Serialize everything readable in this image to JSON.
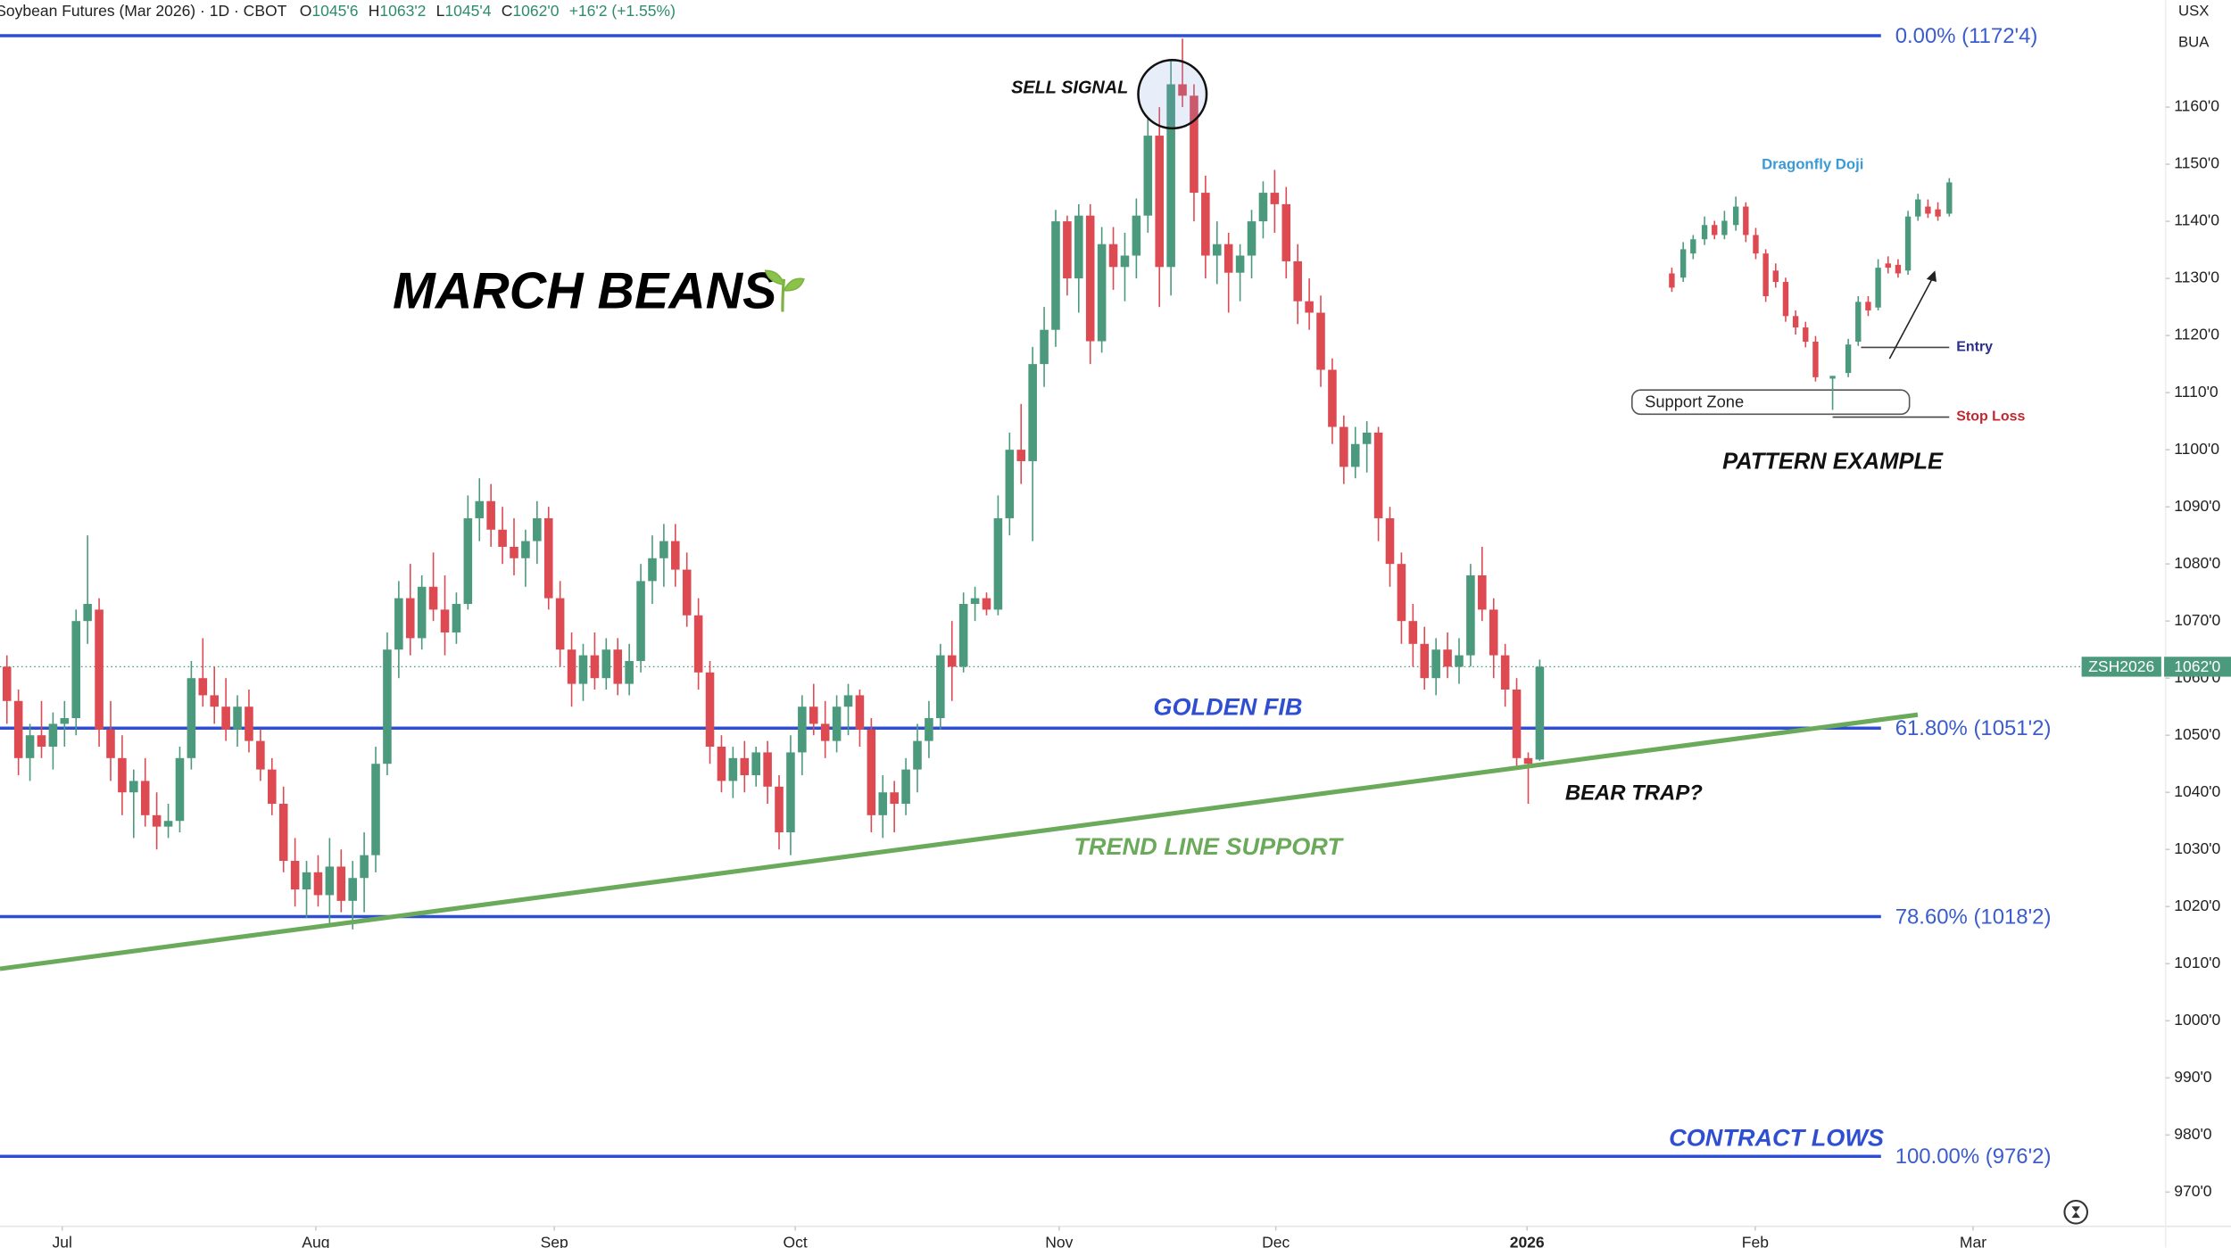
{
  "chart_data": {
    "type": "candlestick",
    "header": {
      "symbol": "Soybean Futures (Mar 2026) · 1D · CBOT",
      "ohlc": [
        {
          "label": "O",
          "value": "1045'6"
        },
        {
          "label": "H",
          "value": "1063'2"
        },
        {
          "label": "L",
          "value": "1045'4"
        },
        {
          "label": "C",
          "value": "1062'0"
        }
      ],
      "change": "+16'2 (+1.55%)"
    },
    "units": [
      "USX",
      "BUA"
    ],
    "title": "MARCH BEANS",
    "annotations": [
      "SELL SIGNAL",
      "GOLDEN FIB",
      "TREND LINE SUPPORT",
      "BEAR TRAP?",
      "CONTRACT LOWS"
    ],
    "inset": {
      "title": "PATTERN EXAMPLE",
      "pattern": "Dragonfly  Doji",
      "entry": "Entry",
      "stop": "Stop Loss",
      "zone": "Support  Zone"
    },
    "up_color": "#4c9a7d",
    "down_color": "#dd4a52",
    "xlim": [
      -0.6,
      187.3
    ],
    "ylim": [
      964.0,
      1178.7
    ],
    "grid": false,
    "xticks": [
      {
        "value": 4.8,
        "label": "Jul"
      },
      {
        "value": 26.8,
        "label": "Aug"
      },
      {
        "value": 47.5,
        "label": "Sep"
      },
      {
        "value": 68.4,
        "label": "Oct"
      },
      {
        "value": 91.3,
        "label": "Nov"
      },
      {
        "value": 110.1,
        "label": "Dec"
      },
      {
        "value": 131.9,
        "label": "2026"
      },
      {
        "value": 151.7,
        "label": "Feb"
      },
      {
        "value": 170.6,
        "label": "Mar"
      }
    ],
    "yticks": [
      {
        "value": 970,
        "label": "970'0"
      },
      {
        "value": 980,
        "label": "980'0"
      },
      {
        "value": 990,
        "label": "990'0"
      },
      {
        "value": 1000,
        "label": "1000'0"
      },
      {
        "value": 1010,
        "label": "1010'0"
      },
      {
        "value": 1020,
        "label": "1020'0"
      },
      {
        "value": 1030,
        "label": "1030'0"
      },
      {
        "value": 1040,
        "label": "1040'0"
      },
      {
        "value": 1050,
        "label": "1050'0"
      },
      {
        "value": 1060,
        "label": "1060'0"
      },
      {
        "value": 1070,
        "label": "1070'0"
      },
      {
        "value": 1080,
        "label": "1080'0"
      },
      {
        "value": 1090,
        "label": "1090'0"
      },
      {
        "value": 1100,
        "label": "1100'0"
      },
      {
        "value": 1110,
        "label": "1110'0"
      },
      {
        "value": 1120,
        "label": "1120'0"
      },
      {
        "value": 1130,
        "label": "1130'0"
      },
      {
        "value": 1140,
        "label": "1140'0"
      },
      {
        "value": 1150,
        "label": "1150'0"
      },
      {
        "value": 1160,
        "label": "1160'0"
      }
    ],
    "fib_color": "#2f4fd0",
    "fib_levels": [
      {
        "value": 1172.5,
        "label": "0.00% (1172'4)"
      },
      {
        "value": 1051.25,
        "label": "61.80% (1051'2)"
      },
      {
        "value": 1018.25,
        "label": "78.60% (1018'2)"
      },
      {
        "value": 976.25,
        "label": "100.00% (976'2)"
      }
    ],
    "trend_line": {
      "color": "#6aaa5a",
      "x": [
        -0.6,
        165.8
      ],
      "y": [
        1009.1,
        1053.6
      ]
    },
    "price_line": {
      "symbol": "ZSH2026",
      "value": 1062,
      "label": "1062'0"
    },
    "ohlc": [
      [
        1062,
        1064,
        1052,
        1056
      ],
      [
        1056,
        1058,
        1043,
        1046
      ],
      [
        1046,
        1052,
        1042,
        1050
      ],
      [
        1050,
        1056,
        1046,
        1048
      ],
      [
        1048,
        1054,
        1044,
        1052
      ],
      [
        1052,
        1056,
        1048,
        1053
      ],
      [
        1053,
        1072,
        1050,
        1070
      ],
      [
        1070,
        1085,
        1066,
        1073
      ],
      [
        1072,
        1074,
        1048,
        1051
      ],
      [
        1051,
        1056,
        1042,
        1046
      ],
      [
        1046,
        1050,
        1036,
        1040
      ],
      [
        1040,
        1044,
        1032,
        1042
      ],
      [
        1042,
        1046,
        1034,
        1036
      ],
      [
        1036,
        1040,
        1030,
        1034
      ],
      [
        1034,
        1038,
        1032,
        1035
      ],
      [
        1035,
        1048,
        1033,
        1046
      ],
      [
        1046,
        1063,
        1044,
        1060
      ],
      [
        1060,
        1067,
        1055,
        1057
      ],
      [
        1057,
        1062,
        1052,
        1055
      ],
      [
        1055,
        1060,
        1049,
        1051
      ],
      [
        1051,
        1057,
        1048,
        1055
      ],
      [
        1055,
        1058,
        1047,
        1049
      ],
      [
        1049,
        1051,
        1042,
        1044
      ],
      [
        1044,
        1046,
        1036,
        1038
      ],
      [
        1038,
        1041,
        1026,
        1028
      ],
      [
        1028,
        1032,
        1020,
        1023
      ],
      [
        1023,
        1028,
        1018,
        1026
      ],
      [
        1026,
        1029,
        1020,
        1022
      ],
      [
        1022,
        1032,
        1017,
        1027
      ],
      [
        1027,
        1030,
        1019,
        1021
      ],
      [
        1021,
        1028,
        1016,
        1025
      ],
      [
        1025,
        1033,
        1019,
        1029
      ],
      [
        1029,
        1048,
        1026,
        1045
      ],
      [
        1045,
        1068,
        1043,
        1065
      ],
      [
        1065,
        1077,
        1060,
        1074
      ],
      [
        1074,
        1080,
        1064,
        1067
      ],
      [
        1067,
        1078,
        1065,
        1076
      ],
      [
        1076,
        1082,
        1070,
        1072
      ],
      [
        1072,
        1078,
        1064,
        1068
      ],
      [
        1068,
        1075,
        1066,
        1073
      ],
      [
        1073,
        1092,
        1072,
        1088
      ],
      [
        1088,
        1095,
        1084,
        1091
      ],
      [
        1091,
        1094,
        1083,
        1086
      ],
      [
        1086,
        1090,
        1080,
        1083
      ],
      [
        1083,
        1088,
        1078,
        1081
      ],
      [
        1081,
        1086,
        1076,
        1084
      ],
      [
        1084,
        1091,
        1080,
        1088
      ],
      [
        1088,
        1090,
        1072,
        1074
      ],
      [
        1074,
        1077,
        1062,
        1065
      ],
      [
        1065,
        1068,
        1055,
        1059
      ],
      [
        1059,
        1066,
        1056,
        1064
      ],
      [
        1064,
        1068,
        1058,
        1060
      ],
      [
        1060,
        1067,
        1058,
        1065
      ],
      [
        1065,
        1067,
        1057,
        1059
      ],
      [
        1059,
        1066,
        1057,
        1063
      ],
      [
        1063,
        1080,
        1061,
        1077
      ],
      [
        1077,
        1085,
        1073,
        1081
      ],
      [
        1081,
        1087,
        1076,
        1084
      ],
      [
        1084,
        1087,
        1076,
        1079
      ],
      [
        1079,
        1082,
        1069,
        1071
      ],
      [
        1071,
        1074,
        1058,
        1061
      ],
      [
        1061,
        1063,
        1045,
        1048
      ],
      [
        1048,
        1050,
        1040,
        1042
      ],
      [
        1042,
        1048,
        1039,
        1046
      ],
      [
        1046,
        1049,
        1040,
        1043
      ],
      [
        1043,
        1048,
        1041,
        1047
      ],
      [
        1047,
        1049,
        1038,
        1041
      ],
      [
        1041,
        1043,
        1030,
        1033
      ],
      [
        1033,
        1050,
        1029,
        1047
      ],
      [
        1047,
        1057,
        1043,
        1055
      ],
      [
        1055,
        1059,
        1050,
        1052
      ],
      [
        1052,
        1056,
        1046,
        1049
      ],
      [
        1049,
        1057,
        1047,
        1055
      ],
      [
        1055,
        1059,
        1050,
        1057
      ],
      [
        1057,
        1058,
        1048,
        1051
      ],
      [
        1051,
        1053,
        1033,
        1036
      ],
      [
        1036,
        1043,
        1032,
        1040
      ],
      [
        1040,
        1042,
        1033,
        1038
      ],
      [
        1038,
        1046,
        1036,
        1044
      ],
      [
        1044,
        1052,
        1040,
        1049
      ],
      [
        1049,
        1056,
        1046,
        1053
      ],
      [
        1053,
        1066,
        1051,
        1064
      ],
      [
        1064,
        1070,
        1056,
        1062
      ],
      [
        1062,
        1075,
        1061,
        1073
      ],
      [
        1073,
        1076,
        1070,
        1074
      ],
      [
        1074,
        1075,
        1071,
        1072
      ],
      [
        1072,
        1092,
        1071,
        1088
      ],
      [
        1088,
        1103,
        1085,
        1100
      ],
      [
        1100,
        1108,
        1094,
        1098
      ],
      [
        1098,
        1118,
        1084,
        1115
      ],
      [
        1115,
        1125,
        1111,
        1121
      ],
      [
        1121,
        1142,
        1118,
        1140
      ],
      [
        1140,
        1141,
        1127,
        1130
      ],
      [
        1130,
        1143,
        1124,
        1141
      ],
      [
        1141,
        1143,
        1115,
        1119
      ],
      [
        1119,
        1139,
        1117,
        1136
      ],
      [
        1136,
        1139,
        1128,
        1132
      ],
      [
        1132,
        1138,
        1126,
        1134
      ],
      [
        1134,
        1144,
        1130,
        1141
      ],
      [
        1141,
        1158,
        1138,
        1155
      ],
      [
        1155,
        1160,
        1125,
        1132
      ],
      [
        1132,
        1168,
        1127,
        1164
      ],
      [
        1164,
        1172,
        1160,
        1162
      ],
      [
        1162,
        1164,
        1140,
        1145
      ],
      [
        1145,
        1148,
        1130,
        1134
      ],
      [
        1134,
        1140,
        1129,
        1136
      ],
      [
        1136,
        1138,
        1124,
        1131
      ],
      [
        1131,
        1136,
        1126,
        1134
      ],
      [
        1134,
        1142,
        1130,
        1140
      ],
      [
        1140,
        1147,
        1137,
        1145
      ],
      [
        1145,
        1149,
        1138,
        1143
      ],
      [
        1143,
        1146,
        1130,
        1133
      ],
      [
        1133,
        1136,
        1122,
        1126
      ],
      [
        1126,
        1130,
        1121,
        1124
      ],
      [
        1124,
        1127,
        1111,
        1114
      ],
      [
        1114,
        1116,
        1101,
        1104
      ],
      [
        1104,
        1106,
        1094,
        1097
      ],
      [
        1097,
        1104,
        1095,
        1101
      ],
      [
        1101,
        1105,
        1096,
        1103
      ],
      [
        1103,
        1104,
        1084,
        1088
      ],
      [
        1088,
        1090,
        1076,
        1080
      ],
      [
        1080,
        1082,
        1066,
        1070
      ],
      [
        1070,
        1073,
        1062,
        1066
      ],
      [
        1066,
        1069,
        1058,
        1060
      ],
      [
        1060,
        1067,
        1057,
        1065
      ],
      [
        1065,
        1068,
        1060,
        1062
      ],
      [
        1062,
        1067,
        1059,
        1064
      ],
      [
        1064,
        1080,
        1062,
        1078
      ],
      [
        1078,
        1083,
        1070,
        1072
      ],
      [
        1072,
        1074,
        1060,
        1064
      ],
      [
        1064,
        1066,
        1055,
        1058
      ],
      [
        1058,
        1060,
        1044,
        1046
      ],
      [
        1046,
        1047,
        1038,
        1045
      ],
      [
        1045.75,
        1063.25,
        1045.5,
        1062
      ]
    ]
  }
}
